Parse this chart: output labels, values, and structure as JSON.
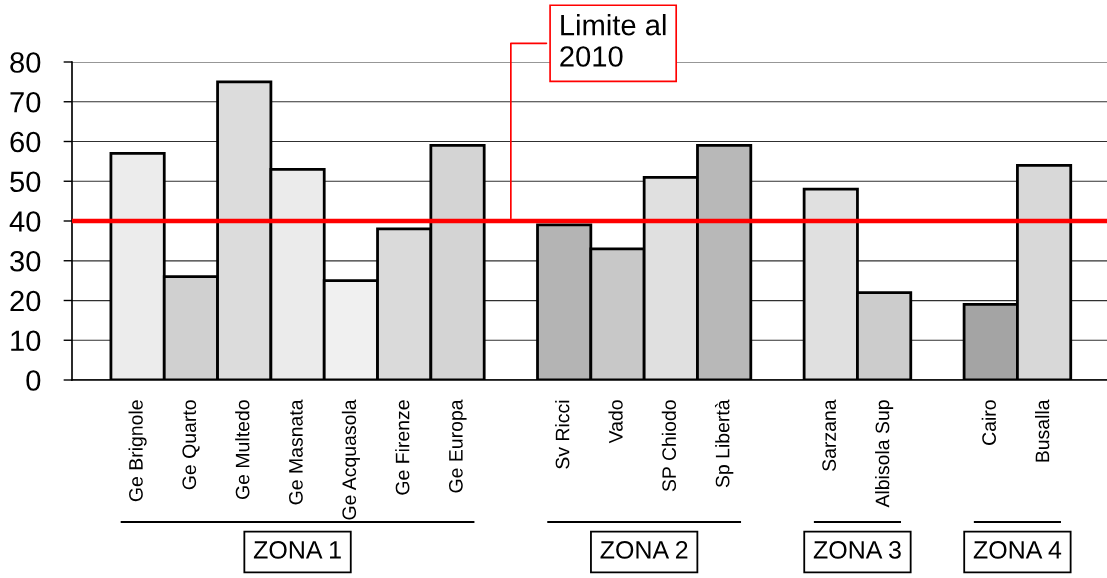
{
  "chart_data": {
    "type": "bar",
    "categories": [
      "Ge Brignole",
      "Ge Quarto",
      "Ge Multedo",
      "Ge Masnata",
      "Ge Acquasola",
      "Ge Firenze",
      "Ge Europa",
      null,
      "Sv Ricci",
      "Vado",
      "SP Chiodo",
      "Sp Libertà",
      null,
      "Sarzana",
      "Albisola Sup",
      null,
      "Cairo",
      "Busalla"
    ],
    "values": [
      57,
      26,
      75,
      53,
      25,
      38,
      59,
      null,
      39,
      33,
      51,
      59,
      null,
      48,
      22,
      null,
      19,
      54
    ],
    "colors": [
      "#ececec",
      "#d0d0d0",
      "#dcdcdc",
      "#ebebeb",
      "#f0f0f0",
      "#dadada",
      "#d4d4d4",
      null,
      "#b4b4b4",
      "#c8c8c8",
      "#e0e0e0",
      "#b8b8b8",
      null,
      "#e0e0e0",
      "#cccccc",
      null,
      "#a4a4a4",
      "#d8d8d8"
    ],
    "ylim": [
      0,
      80
    ],
    "yticks": [
      0,
      10,
      20,
      30,
      40,
      50,
      60,
      70,
      80
    ],
    "grid": "y",
    "ref_lines": [
      {
        "axis": "y",
        "value": 40,
        "label": "Limite al 2010",
        "color": "#ff0000"
      }
    ],
    "annotations": [
      "ZONA 1",
      "ZONA 2",
      "ZONA 3",
      "ZONA 4"
    ]
  }
}
